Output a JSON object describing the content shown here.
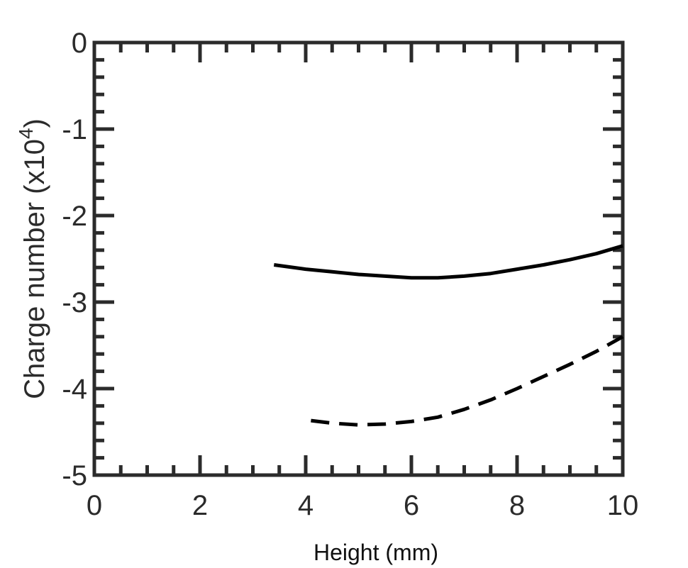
{
  "chart_data": {
    "type": "line",
    "title": "",
    "xlabel": "Height (mm)",
    "ylabel": {
      "main": "Charge number (x10",
      "sup": "4",
      "close": ")"
    },
    "xlim": [
      0,
      10
    ],
    "ylim": [
      -5,
      0
    ],
    "x_ticks": [
      0,
      2,
      4,
      6,
      8,
      10
    ],
    "y_ticks": [
      0,
      -1,
      -2,
      -3,
      -4,
      -5
    ],
    "x_tick_labels": [
      "0",
      "2",
      "4",
      "6",
      "8",
      "10"
    ],
    "y_tick_labels": [
      "0",
      "-1",
      "-2",
      "-3",
      "-4",
      "-5"
    ],
    "grid": false,
    "legend": "none",
    "series": [
      {
        "style": "solid",
        "color": "#000000",
        "x": [
          3.4,
          4.0,
          4.5,
          5.0,
          5.5,
          6.0,
          6.5,
          7.0,
          7.5,
          8.0,
          8.5,
          9.0,
          9.5,
          10.0
        ],
        "y": [
          -2.57,
          -2.62,
          -2.65,
          -2.68,
          -2.7,
          -2.72,
          -2.72,
          -2.7,
          -2.67,
          -2.62,
          -2.57,
          -2.51,
          -2.44,
          -2.35
        ]
      },
      {
        "style": "dashed",
        "color": "#000000",
        "x": [
          4.1,
          4.5,
          5.0,
          5.5,
          6.0,
          6.5,
          7.0,
          7.5,
          8.0,
          8.5,
          9.0,
          9.5,
          10.0
        ],
        "y": [
          -4.37,
          -4.4,
          -4.42,
          -4.41,
          -4.38,
          -4.33,
          -4.24,
          -4.13,
          -4.0,
          -3.86,
          -3.72,
          -3.57,
          -3.4
        ]
      }
    ]
  }
}
